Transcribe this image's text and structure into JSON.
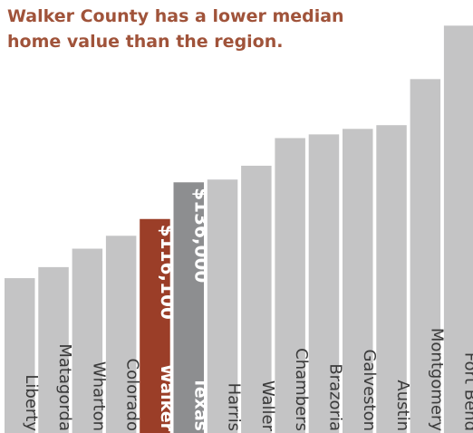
{
  "title_lines": [
    "Walker County has a lower median",
    "home value than the region."
  ],
  "colors": {
    "bar": "#c4c4c5",
    "highlight": "#9b3e28",
    "reference": "#8d8e90",
    "label": "#3a3a3a",
    "title": "#a0533a",
    "value_label": "#ffffff"
  },
  "chart_data": {
    "type": "bar",
    "title": "Walker County has a lower median home value than the region.",
    "categories": [
      "Liberty",
      "Matagorda",
      "Wharton",
      "Colorado",
      "Walker",
      "Texas",
      "Harris",
      "Waller",
      "Chambers",
      "Brazoria",
      "Galveston",
      "Austin",
      "Montgomery",
      "Fort Bend"
    ],
    "values": [
      84000,
      90000,
      100000,
      107000,
      116100,
      136000,
      137500,
      145000,
      160000,
      162000,
      165000,
      167000,
      192000,
      221000
    ],
    "highlight": "Walker",
    "reference": "Texas",
    "value_labels": {
      "Walker": "$116,100",
      "Texas": "$136,000"
    },
    "bold_labels": [
      "Walker",
      "Texas"
    ],
    "ylim": [
      0,
      230000
    ],
    "grid": false,
    "legend": "none",
    "xlabel": "",
    "ylabel": ""
  }
}
